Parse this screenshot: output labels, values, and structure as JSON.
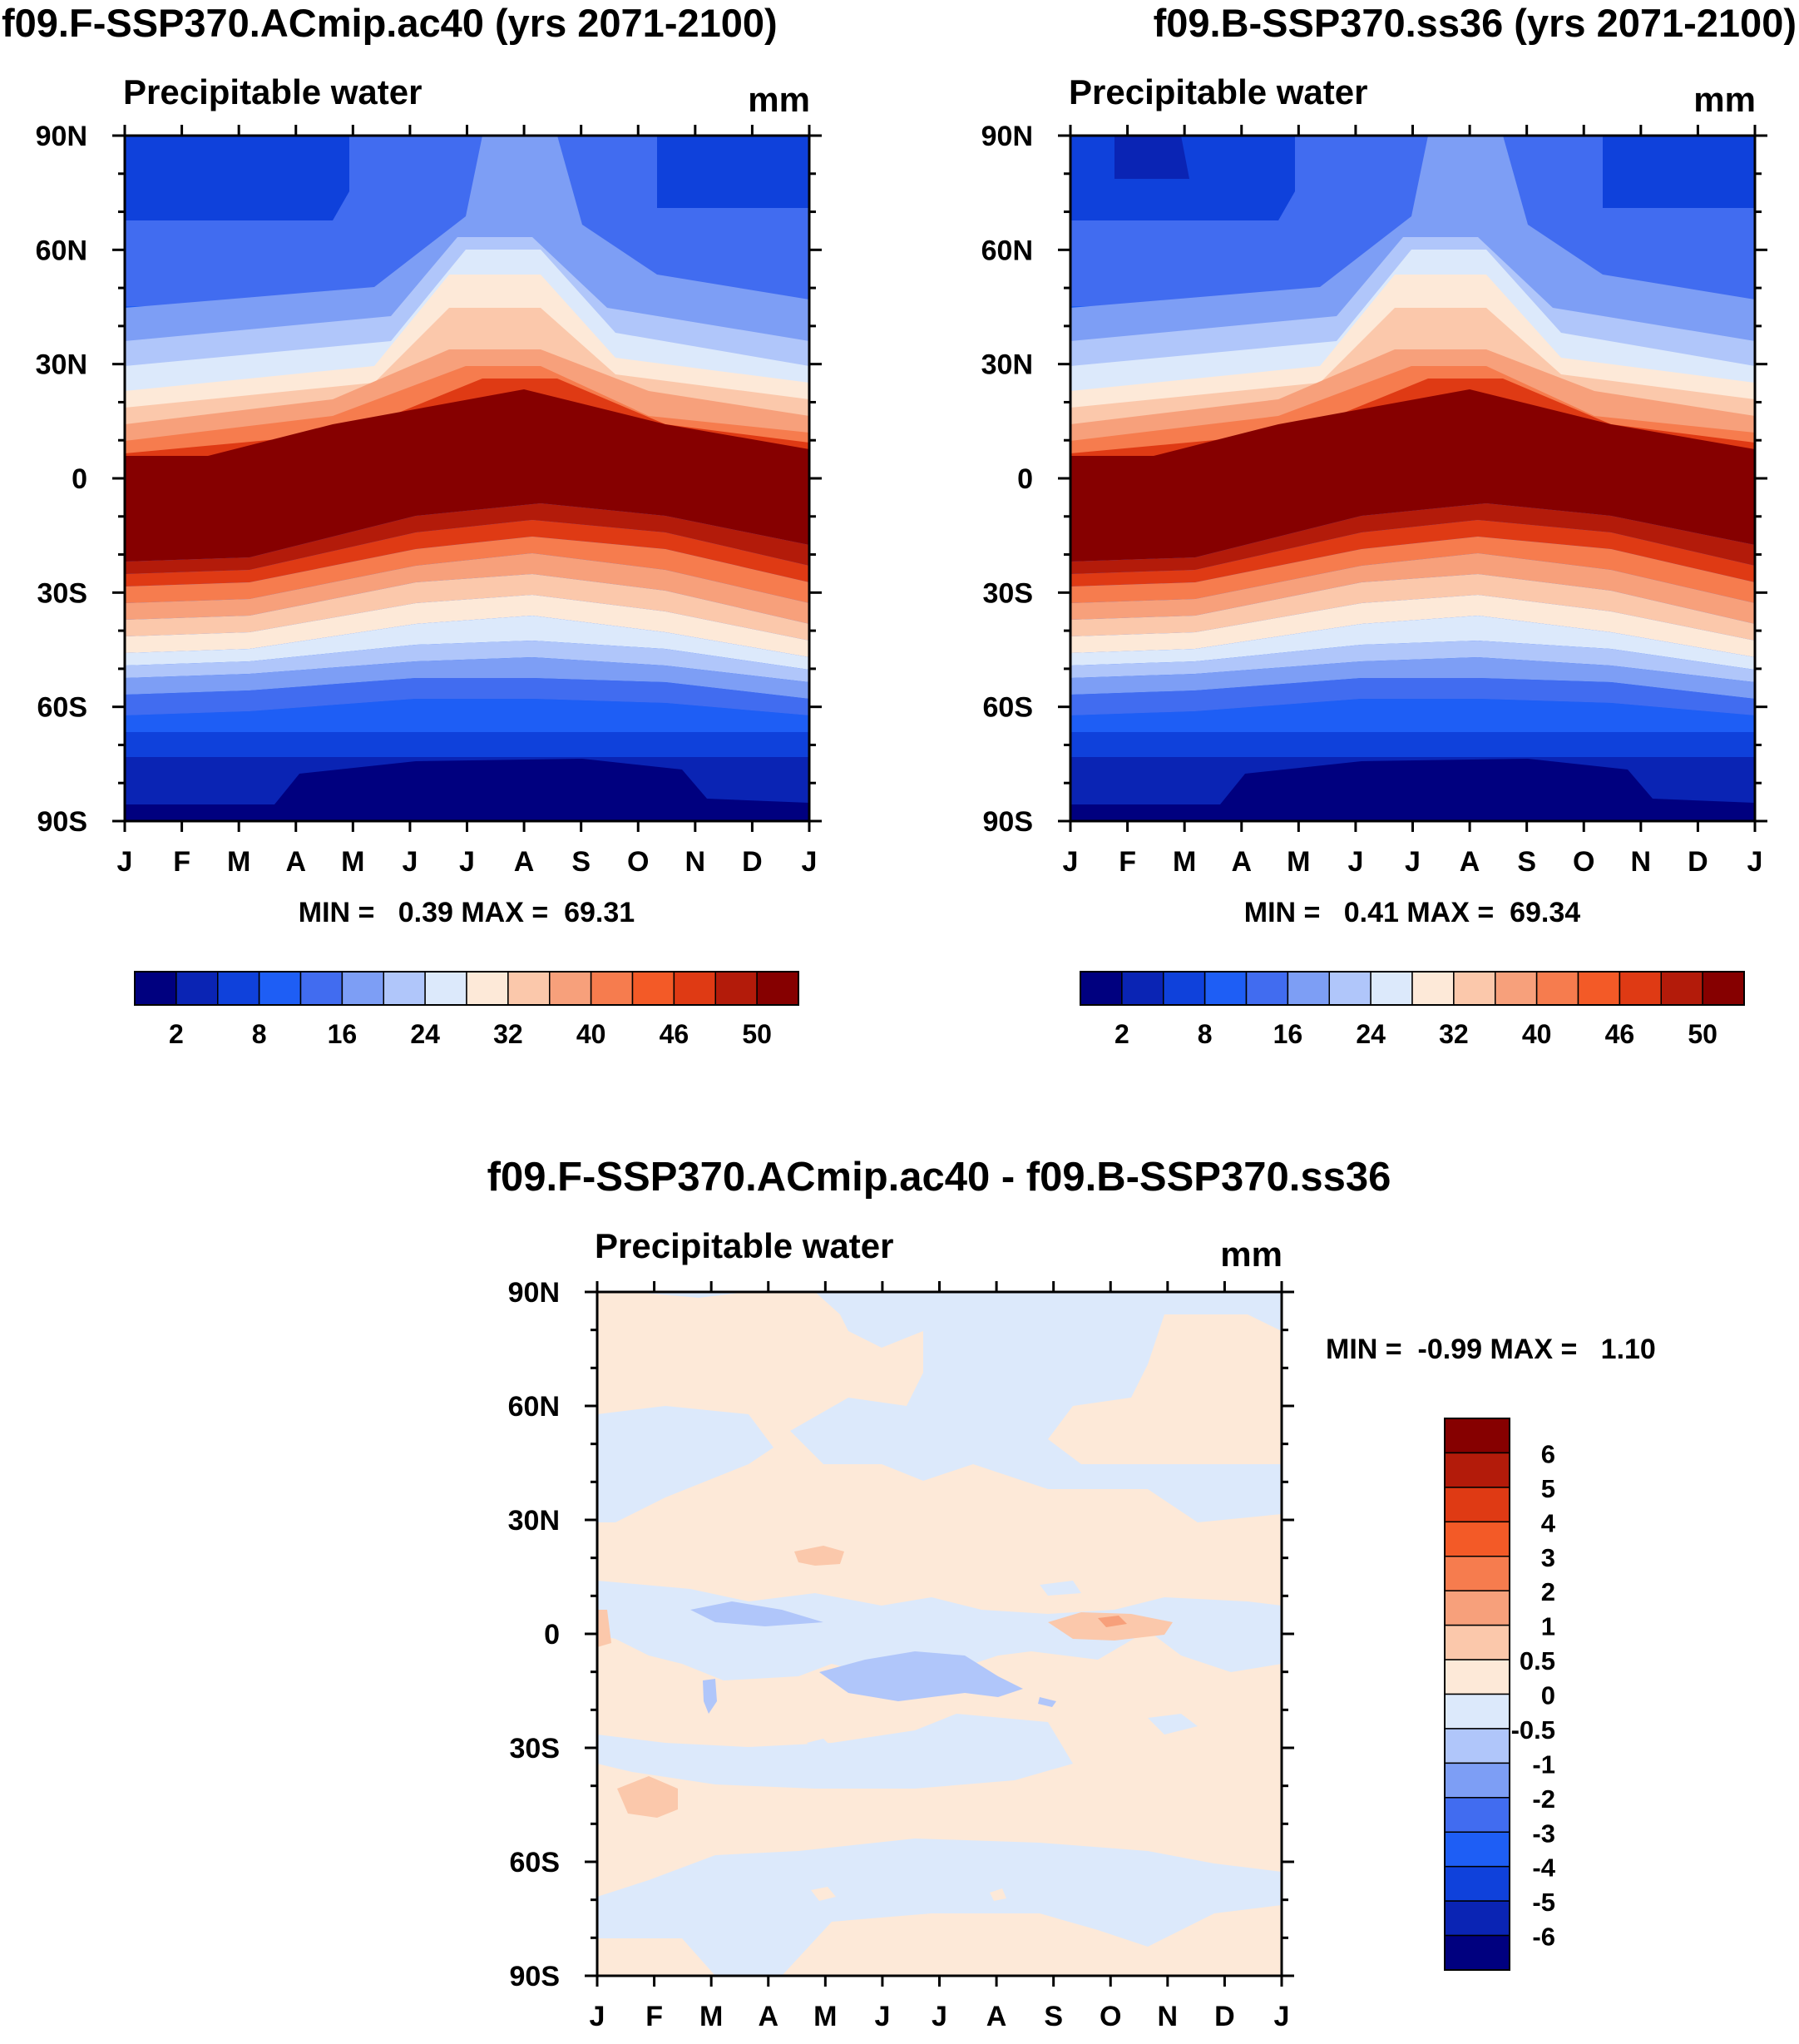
{
  "chart_data": [
    {
      "type": "heatmap",
      "title": "f09.F-SSP370.ACmip.ac40 (yrs 2071-2100)",
      "subtitle": "Precipitable water",
      "units": "mm",
      "x_tick_labels": [
        "J",
        "F",
        "M",
        "A",
        "M",
        "J",
        "J",
        "A",
        "S",
        "O",
        "N",
        "D",
        "J"
      ],
      "y_tick_labels": [
        "90N",
        "60N",
        "30N",
        "0",
        "30S",
        "60S",
        "90S"
      ],
      "ylim": [
        -90,
        90
      ],
      "stats_label": "MIN =   0.39 MAX =  69.31",
      "min": 0.39,
      "max": 69.31,
      "colorbar": {
        "labels": [
          "2",
          "8",
          "16",
          "24",
          "32",
          "40",
          "46",
          "50"
        ],
        "colors": [
          "#00007f",
          "#0a24b4",
          "#0f41db",
          "#1e5ef5",
          "#416cf0",
          "#7d9ef5",
          "#b0c6fa",
          "#dce9fb",
          "#fde9d8",
          "#fbc8ab",
          "#f7a07b",
          "#f67c4e",
          "#f35a27",
          "#df3a14",
          "#b31b0a",
          "#860000"
        ]
      }
    },
    {
      "type": "heatmap",
      "title": "f09.B-SSP370.ss36 (yrs 2071-2100)",
      "subtitle": "Precipitable water",
      "units": "mm",
      "x_tick_labels": [
        "J",
        "F",
        "M",
        "A",
        "M",
        "J",
        "J",
        "A",
        "S",
        "O",
        "N",
        "D",
        "J"
      ],
      "y_tick_labels": [
        "90N",
        "60N",
        "30N",
        "0",
        "30S",
        "60S",
        "90S"
      ],
      "ylim": [
        -90,
        90
      ],
      "stats_label": "MIN =   0.41 MAX =  69.34",
      "min": 0.41,
      "max": 69.34,
      "colorbar": {
        "labels": [
          "2",
          "8",
          "16",
          "24",
          "32",
          "40",
          "46",
          "50"
        ],
        "colors": [
          "#00007f",
          "#0a24b4",
          "#0f41db",
          "#1e5ef5",
          "#416cf0",
          "#7d9ef5",
          "#b0c6fa",
          "#dce9fb",
          "#fde9d8",
          "#fbc8ab",
          "#f7a07b",
          "#f67c4e",
          "#f35a27",
          "#df3a14",
          "#b31b0a",
          "#860000"
        ]
      }
    },
    {
      "type": "heatmap",
      "title": "f09.F-SSP370.ACmip.ac40 - f09.B-SSP370.ss36",
      "subtitle": "Precipitable water",
      "units": "mm",
      "x_tick_labels": [
        "J",
        "F",
        "M",
        "A",
        "M",
        "J",
        "J",
        "A",
        "S",
        "O",
        "N",
        "D",
        "J"
      ],
      "y_tick_labels": [
        "90N",
        "60N",
        "30N",
        "0",
        "30S",
        "60S",
        "90S"
      ],
      "ylim": [
        -90,
        90
      ],
      "stats_label": "MIN =  -0.99 MAX =   1.10",
      "min": -0.99,
      "max": 1.1,
      "colorbar": {
        "labels": [
          "6",
          "5",
          "4",
          "3",
          "2",
          "1",
          "0.5",
          "0",
          "-0.5",
          "-1",
          "-2",
          "-3",
          "-4",
          "-5",
          "-6"
        ],
        "colors": [
          "#860000",
          "#b31b0a",
          "#df3a14",
          "#f35a27",
          "#f67c4e",
          "#f7a07b",
          "#fbc8ab",
          "#fde9d8",
          "#dce9fb",
          "#b0c6fa",
          "#7d9ef5",
          "#416cf0",
          "#1e5ef5",
          "#0f41db",
          "#0a24b4",
          "#00007f"
        ]
      }
    }
  ]
}
